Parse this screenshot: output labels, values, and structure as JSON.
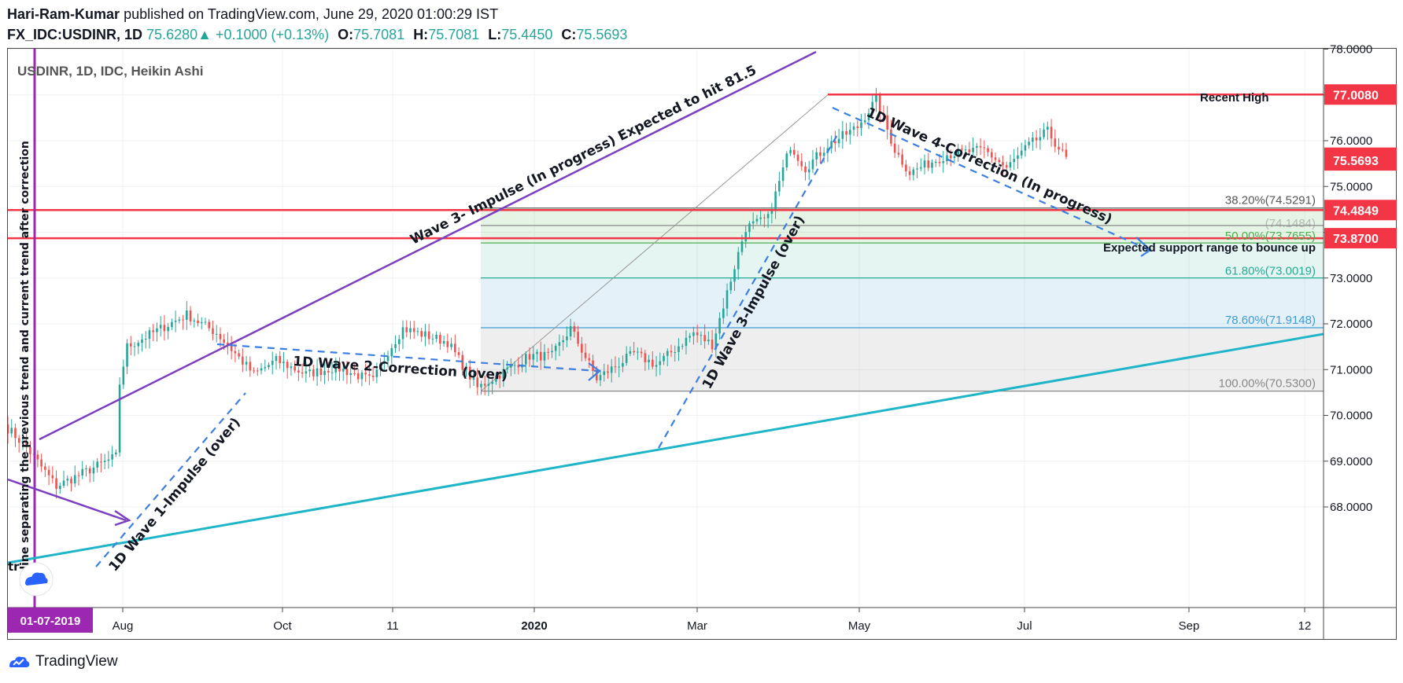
{
  "header": {
    "author": "Hari-Ram-Kumar",
    "published": "published on TradingView.com, June 29, 2020 01:00:29 IST",
    "symbol": "FX_IDC:USDINR, 1D",
    "last": "75.6280",
    "change_arrow": "▲",
    "change": "+0.1000 (+0.13%)",
    "o_label": "O:",
    "o": "75.7081",
    "h_label": "H:",
    "h": "75.7081",
    "l_label": "L:",
    "l": "75.4450",
    "c_label": "C:",
    "c": "75.5693"
  },
  "footer": {
    "brand": "TradingView",
    "icon": "tradingview-logo-icon"
  },
  "colors": {
    "up": "#26a69a",
    "down": "#ef5350",
    "hline": "#f23645",
    "purple": "#7b3fbf",
    "teal": "#1fb5c8",
    "dash": "#3d7fe0",
    "fib_green": "#4caf50",
    "fib_teal": "#22ab94",
    "fib_blue": "#3d9bd6",
    "fib_gray": "#888888"
  },
  "chart_data": {
    "type": "candlestick",
    "title": "USDINR, 1D, IDC, Heikin Ashi",
    "x_tick_labels": [
      "Aug",
      "Oct",
      "11",
      "2020",
      "Mar",
      "May",
      "Jul",
      "Sep",
      "12"
    ],
    "highlighted_date": "01-07-2019",
    "y_tick_labels": [
      "68.0000",
      "69.0000",
      "70.0000",
      "71.0000",
      "72.0000",
      "73.0000",
      "74.0000",
      "75.0000",
      "76.0000",
      "77.0000",
      "78.0000"
    ],
    "ylim": [
      67.5,
      78.2
    ],
    "price_labels": [
      {
        "value": 77.008,
        "text": "77.0080",
        "note": "Recent High"
      },
      {
        "value": 75.628,
        "text": "75.6280"
      },
      {
        "value": 75.5693,
        "text": "75.5693"
      },
      {
        "value": 74.4849,
        "text": "74.4849"
      },
      {
        "value": 73.87,
        "text": "73.8700"
      }
    ],
    "fib_levels": [
      {
        "value": 74.5291,
        "text": "38.20%(74.5291)"
      },
      {
        "value": 74.1484,
        "text": "(74.1484)"
      },
      {
        "value": 73.7655,
        "text": "50.00%(73.7655)"
      },
      {
        "value": 73.0019,
        "text": "61.80%(73.0019)"
      },
      {
        "value": 71.9148,
        "text": "78.60%(71.9148)"
      },
      {
        "value": 70.53,
        "text": "100.00%(70.5300)"
      }
    ],
    "annotations": [
      "Wave 3- Impulse (In progress) Expected to hit 81.5",
      "1D Wave 2-Correction (over)",
      "1D Wave 1-Impulse (over)",
      "1D Wave 3-Impulse (over)",
      "1D Wave 4-Correction (In progress)",
      "Expected support range to bounce up",
      "Recent High",
      "W line separating the previous trend and current trend after correction",
      "tr"
    ],
    "segments": [
      {
        "days": 6,
        "from": 69.8,
        "to": 69.3
      },
      {
        "days": 8,
        "from": 69.3,
        "to": 68.45
      },
      {
        "days": 16,
        "from": 68.45,
        "to": 69.1
      },
      {
        "days": 1,
        "from": 69.1,
        "to": 70.7
      },
      {
        "days": 2,
        "from": 70.7,
        "to": 71.5
      },
      {
        "days": 16,
        "from": 71.5,
        "to": 72.2
      },
      {
        "days": 8,
        "from": 72.2,
        "to": 71.8
      },
      {
        "days": 10,
        "from": 71.8,
        "to": 70.9
      },
      {
        "days": 6,
        "from": 70.9,
        "to": 71.2
      },
      {
        "days": 8,
        "from": 71.2,
        "to": 70.9
      },
      {
        "days": 8,
        "from": 70.9,
        "to": 71.05
      },
      {
        "days": 10,
        "from": 71.05,
        "to": 70.75
      },
      {
        "days": 4,
        "from": 70.75,
        "to": 71.4
      },
      {
        "days": 4,
        "from": 71.4,
        "to": 71.9
      },
      {
        "days": 12,
        "from": 71.9,
        "to": 71.6
      },
      {
        "days": 8,
        "from": 71.6,
        "to": 70.6
      },
      {
        "days": 14,
        "from": 70.6,
        "to": 71.3
      },
      {
        "days": 6,
        "from": 71.3,
        "to": 71.3
      },
      {
        "days": 5,
        "from": 71.3,
        "to": 71.9
      },
      {
        "days": 7,
        "from": 71.9,
        "to": 70.8
      },
      {
        "days": 10,
        "from": 70.8,
        "to": 71.35
      },
      {
        "days": 6,
        "from": 71.35,
        "to": 71.1
      },
      {
        "days": 10,
        "from": 71.1,
        "to": 71.8
      },
      {
        "days": 5,
        "from": 71.8,
        "to": 71.55
      },
      {
        "days": 9,
        "from": 71.55,
        "to": 74.1
      },
      {
        "days": 6,
        "from": 74.1,
        "to": 74.3
      },
      {
        "days": 6,
        "from": 74.3,
        "to": 75.9
      },
      {
        "days": 4,
        "from": 75.9,
        "to": 75.4
      },
      {
        "days": 6,
        "from": 75.4,
        "to": 75.9
      },
      {
        "days": 8,
        "from": 75.9,
        "to": 76.3
      },
      {
        "days": 5,
        "from": 76.3,
        "to": 76.9
      },
      {
        "days": 5,
        "from": 76.9,
        "to": 75.8
      },
      {
        "days": 4,
        "from": 75.8,
        "to": 75.3
      },
      {
        "days": 10,
        "from": 75.3,
        "to": 75.7
      },
      {
        "days": 10,
        "from": 75.7,
        "to": 75.8
      },
      {
        "days": 6,
        "from": 75.8,
        "to": 75.4
      },
      {
        "days": 6,
        "from": 75.4,
        "to": 75.9
      },
      {
        "days": 5,
        "from": 75.9,
        "to": 76.2
      },
      {
        "days": 5,
        "from": 76.2,
        "to": 75.6
      }
    ]
  }
}
